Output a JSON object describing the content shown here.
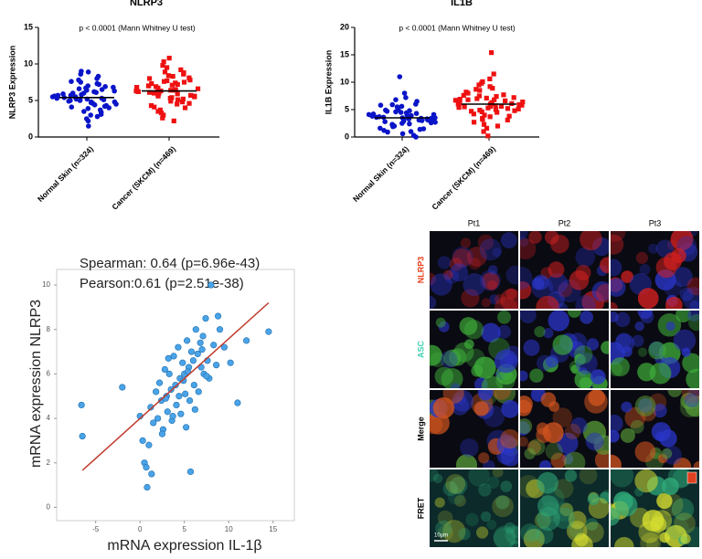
{
  "chart_data": [
    {
      "type": "strip",
      "title": "NLRP3",
      "annotation": "p < 0.0001 (Mann Whitney U test)",
      "ylabel": "NLRP3 Expression",
      "categories": [
        "Normal Skin (n=324)",
        "Cancer (SKCM) (n=469)"
      ],
      "series": [
        {
          "color": "#0a14c8",
          "marker": "circle",
          "values": [
            5.4,
            5.1,
            4.8,
            6.0,
            5.7,
            4.3,
            6.5,
            5.2,
            3.9,
            7.0,
            5.5,
            4.6,
            6.2,
            5.0,
            3.4,
            7.5,
            5.8,
            4.9,
            6.8,
            5.3,
            2.8,
            8.0,
            5.6,
            4.4,
            6.3,
            4.1,
            7.2,
            5.9,
            3.1,
            8.6,
            5.4,
            4.7,
            6.6,
            5.1,
            2.2,
            9.0,
            6.1,
            4.5,
            7.8,
            5.0,
            3.7,
            6.9,
            1.5,
            5.3,
            6.4,
            4.2,
            7.3,
            5.7,
            3.5,
            8.3,
            4.0,
            6.7,
            5.2,
            2.5,
            7.6,
            4.8,
            6.0,
            5.5,
            3.0,
            8.9
          ]
        },
        {
          "color": "#ee1111",
          "marker": "square",
          "values": [
            6.3,
            6.0,
            5.6,
            7.0,
            6.6,
            5.1,
            7.5,
            6.2,
            4.5,
            8.1,
            6.4,
            5.4,
            7.2,
            5.9,
            4.0,
            8.6,
            6.8,
            5.7,
            7.8,
            6.1,
            3.3,
            9.2,
            6.5,
            5.2,
            7.4,
            4.8,
            8.3,
            6.9,
            3.7,
            9.8,
            6.3,
            5.5,
            7.6,
            6.0,
            2.6,
            10.3,
            7.1,
            5.3,
            8.9,
            5.8,
            4.3,
            8.0,
            2.2,
            6.2,
            7.3,
            4.9,
            8.4,
            6.7,
            4.1,
            9.5,
            4.6,
            7.7,
            6.1,
            3.0,
            8.8,
            5.6,
            7.0,
            6.4,
            3.5,
            10.8
          ]
        }
      ],
      "medians": [
        5.4,
        6.3
      ],
      "ylim": [
        0,
        15
      ],
      "yticks": [
        0,
        5,
        10,
        15
      ]
    },
    {
      "type": "strip",
      "title": "IL1B",
      "annotation": "p < 0.0001 (Mann Whitney U test)",
      "ylabel": "IL1B Expression",
      "categories": [
        "Normal Skin (n=324)",
        "Cancer (SKCM) (n=469)"
      ],
      "series": [
        {
          "color": "#0a14c8",
          "marker": "circle",
          "values": [
            3.5,
            3.2,
            2.9,
            4.1,
            3.8,
            2.4,
            4.6,
            3.3,
            1.9,
            5.2,
            3.6,
            2.7,
            4.3,
            3.1,
            1.4,
            5.8,
            3.9,
            2.6,
            4.9,
            3.4,
            0.9,
            6.5,
            3.7,
            2.3,
            4.4,
            2.0,
            5.5,
            4.0,
            1.2,
            7.2,
            3.5,
            2.8,
            4.7,
            3.0,
            0.3,
            8.0,
            4.2,
            2.5,
            6.0,
            3.1,
            1.6,
            5.0,
            0.0,
            3.4,
            4.5,
            2.1,
            5.6,
            3.8,
            1.5,
            6.8,
            2.2,
            4.8,
            3.3,
            0.6,
            5.9,
            2.9,
            4.1,
            3.6,
            1.0,
            11.0
          ]
        },
        {
          "color": "#ee1111",
          "marker": "square",
          "values": [
            6.0,
            5.6,
            5.1,
            6.8,
            6.3,
            4.5,
            7.4,
            5.8,
            3.8,
            8.2,
            6.1,
            4.8,
            7.0,
            5.5,
            3.1,
            8.9,
            6.6,
            5.0,
            7.7,
            5.7,
            2.3,
            9.8,
            6.2,
            4.6,
            7.2,
            4.0,
            8.5,
            6.7,
            2.7,
            10.6,
            6.0,
            4.9,
            7.5,
            5.4,
            1.0,
            11.5,
            6.9,
            4.7,
            9.2,
            5.3,
            3.4,
            8.0,
            0.2,
            5.9,
            7.1,
            4.2,
            8.7,
            6.4,
            3.2,
            10.1,
            3.7,
            7.6,
            5.6,
            1.6,
            9.5,
            5.2,
            6.8,
            6.1,
            2.0,
            15.4
          ]
        }
      ],
      "medians": [
        3.5,
        6.0
      ],
      "ylim": [
        0,
        20
      ],
      "yticks": [
        0,
        5,
        10,
        15,
        20
      ]
    },
    {
      "type": "scatter",
      "annotations": [
        "Spearman: 0.64  (p=6.96e-43)",
        "Pearson:0.61 (p=2.51e-38)"
      ],
      "xlabel": "mRNA expression IL-1β",
      "ylabel": "mRNA expression NLRP3",
      "color": "#4aa3e6",
      "x": [
        -6.6,
        -6.5,
        -2.0,
        0.0,
        0.3,
        0.5,
        0.8,
        1.0,
        1.2,
        1.5,
        1.8,
        2.0,
        2.2,
        2.4,
        2.6,
        2.8,
        3.0,
        3.1,
        3.3,
        3.5,
        3.6,
        3.8,
        4.0,
        4.1,
        4.3,
        4.5,
        4.6,
        4.8,
        5.0,
        5.1,
        5.3,
        5.5,
        5.6,
        5.8,
        6.0,
        6.1,
        6.3,
        6.5,
        6.6,
        6.8,
        7.0,
        7.2,
        7.4,
        7.6,
        7.8,
        8.0,
        8.3,
        8.6,
        9.0,
        9.5,
        10.2,
        11.0,
        12.0,
        14.5,
        2.5,
        3.7,
        4.9,
        5.4,
        6.2,
        7.1,
        1.3,
        0.7,
        5.7,
        3.2,
        4.4,
        6.9,
        8.8,
        2.9,
        5.2,
        7.5
      ],
      "y": [
        4.6,
        3.2,
        5.4,
        4.1,
        3.0,
        2.0,
        0.9,
        2.8,
        4.5,
        3.8,
        5.2,
        4.0,
        5.6,
        4.8,
        3.5,
        6.2,
        5.0,
        4.3,
        6.0,
        5.3,
        3.9,
        6.8,
        5.5,
        4.6,
        7.2,
        5.8,
        4.2,
        6.5,
        6.0,
        5.1,
        7.5,
        6.3,
        4.8,
        7.0,
        6.6,
        5.5,
        8.0,
        6.9,
        5.2,
        7.4,
        7.1,
        6.0,
        8.5,
        6.6,
        5.8,
        10.0,
        7.3,
        6.4,
        8.0,
        7.2,
        6.5,
        4.7,
        7.5,
        7.9,
        3.3,
        4.1,
        5.7,
        6.1,
        4.4,
        7.7,
        1.5,
        1.8,
        1.6,
        6.7,
        5.0,
        6.3,
        8.6,
        4.9,
        3.6,
        5.9
      ],
      "fit": {
        "color": "#c0392b",
        "x": [
          -6.5,
          14.5
        ],
        "y": [
          1.66,
          9.2
        ]
      },
      "xlim": [
        -9.4,
        17.4
      ],
      "ylim": [
        -0.6,
        10.7
      ],
      "xticks": [
        -5,
        0,
        5,
        10,
        15
      ],
      "yticks": [
        0,
        2,
        4,
        6,
        8,
        10
      ]
    }
  ],
  "figure_panel": {
    "columns": [
      "Pt1",
      "Pt2",
      "Pt3"
    ],
    "rows": [
      "NLRP3",
      "ASC",
      "Merge",
      "FRET"
    ],
    "row_colors": [
      "#e8401c",
      "#3fd1b0",
      "#000000",
      "#000000"
    ],
    "scale_bar": "10μm"
  }
}
